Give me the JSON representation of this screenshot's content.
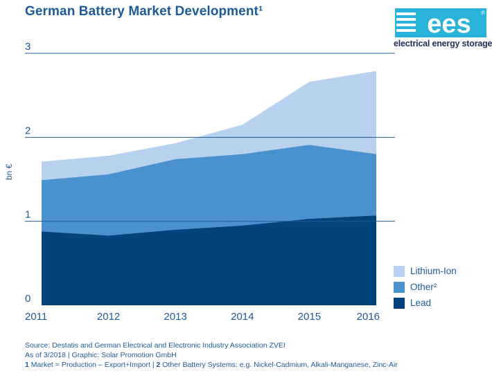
{
  "title": "German Battery Market Development¹",
  "logo": {
    "text": "ees",
    "tagline": "electrical energy storage",
    "reg": "®"
  },
  "colors": {
    "lead": "#00437d",
    "other": "#4a92cf",
    "lithium": "#b7d1ef",
    "text": "#1d5a96",
    "grid": "#1d5a96"
  },
  "chart_data": {
    "type": "area",
    "stacked": true,
    "x": [
      "2011",
      "2012",
      "2013",
      "2014",
      "2015",
      "2016"
    ],
    "ylabel": "bn €",
    "ylim": [
      0,
      3
    ],
    "yticks": [
      "0",
      "1",
      "2",
      "3"
    ],
    "grid": true,
    "legend_position": "right",
    "series": [
      {
        "name": "Lead",
        "values": [
          0.88,
          0.83,
          0.9,
          0.95,
          1.03,
          1.07
        ]
      },
      {
        "name": "Other²",
        "values": [
          0.61,
          0.73,
          0.84,
          0.85,
          0.88,
          0.73
        ]
      },
      {
        "name": "Lithium-Ion",
        "values": [
          0.22,
          0.22,
          0.19,
          0.35,
          0.75,
          0.99
        ]
      }
    ]
  },
  "legend": [
    {
      "label": "Lithium-Ion",
      "color": "#b7d1ef"
    },
    {
      "label": "Other²",
      "color": "#4a92cf"
    },
    {
      "label": "Lead",
      "color": "#00437d"
    }
  ],
  "footer": {
    "source": "Source: Destatis and German Electrical and Electronic Industry Association ZVEI",
    "asof": "As of 3/2018 | Graphic: Solar Promotion GmbH",
    "note1_num": "1",
    "note1": " Market = Production – Export+Import | ",
    "note2_num": "2",
    "note2": " Other Battery Systems: e.g. Nickel-Cadmium, Alkali-Manganese, Zinc-Air"
  }
}
